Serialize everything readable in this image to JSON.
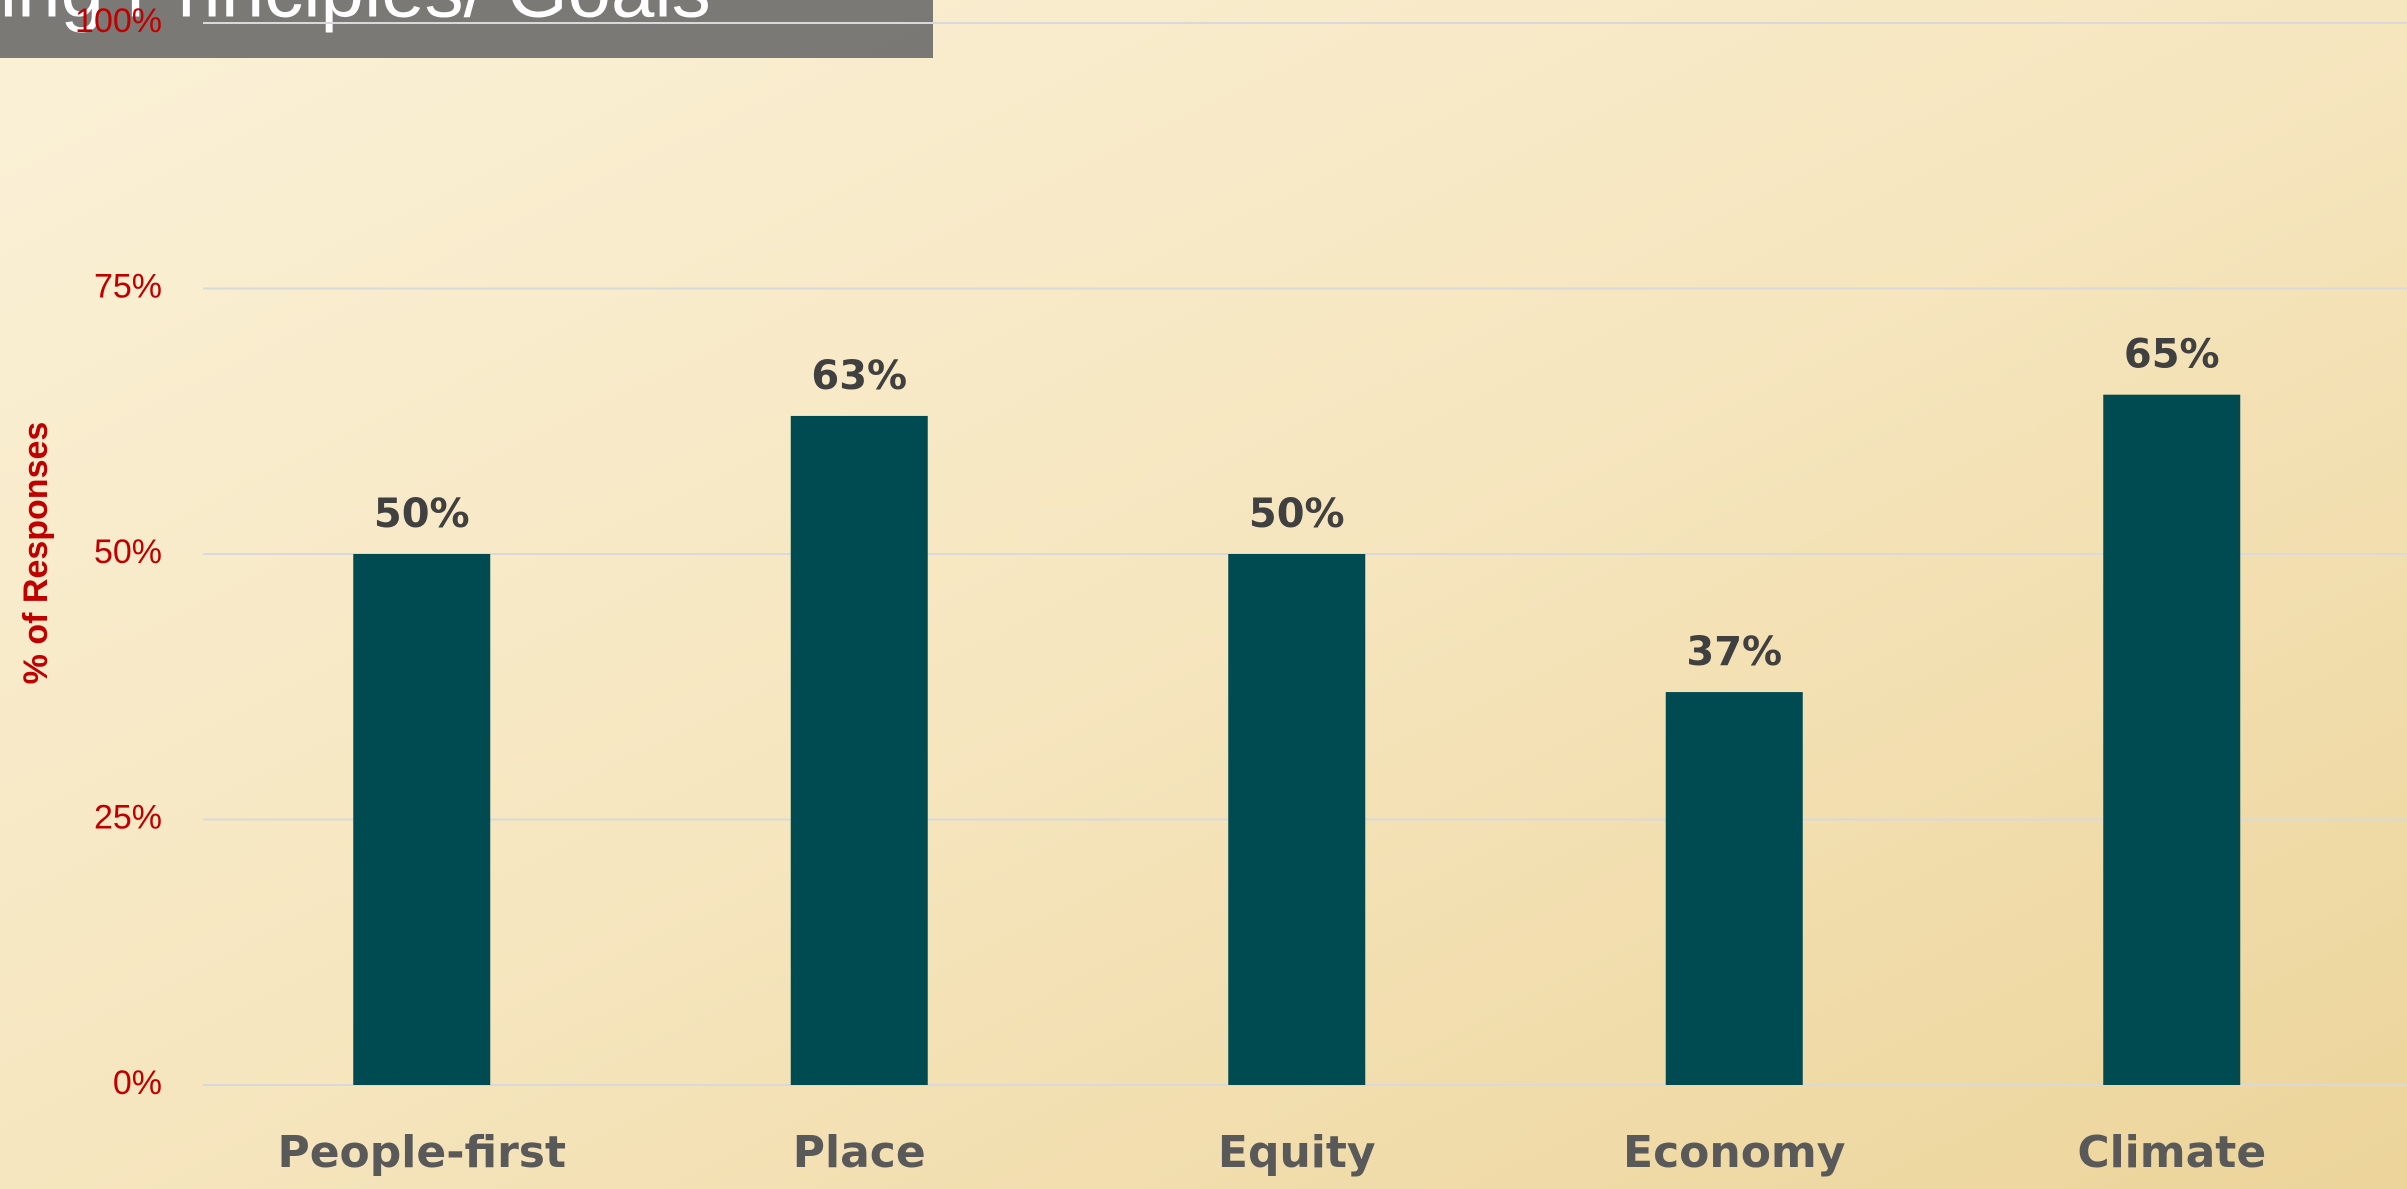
{
  "chart_data": {
    "type": "bar",
    "title": "Guiding Principles/ Goals",
    "y_axis_label": "% of Responses",
    "categories": [
      "People-first",
      "Place",
      "Equity",
      "Economy",
      "Climate"
    ],
    "values": [
      50,
      63,
      50,
      37,
      65
    ],
    "value_labels": [
      "50%",
      "63%",
      "50%",
      "37%",
      "65%"
    ],
    "color": "#004b52",
    "ylim": [
      0,
      100
    ],
    "yticks": [
      {
        "value": 0,
        "label": "0%"
      },
      {
        "value": 25,
        "label": "25%"
      },
      {
        "value": 50,
        "label": "50%"
      },
      {
        "value": 75,
        "label": "75%"
      },
      {
        "value": 100,
        "label": "100%"
      }
    ],
    "grid": true
  }
}
